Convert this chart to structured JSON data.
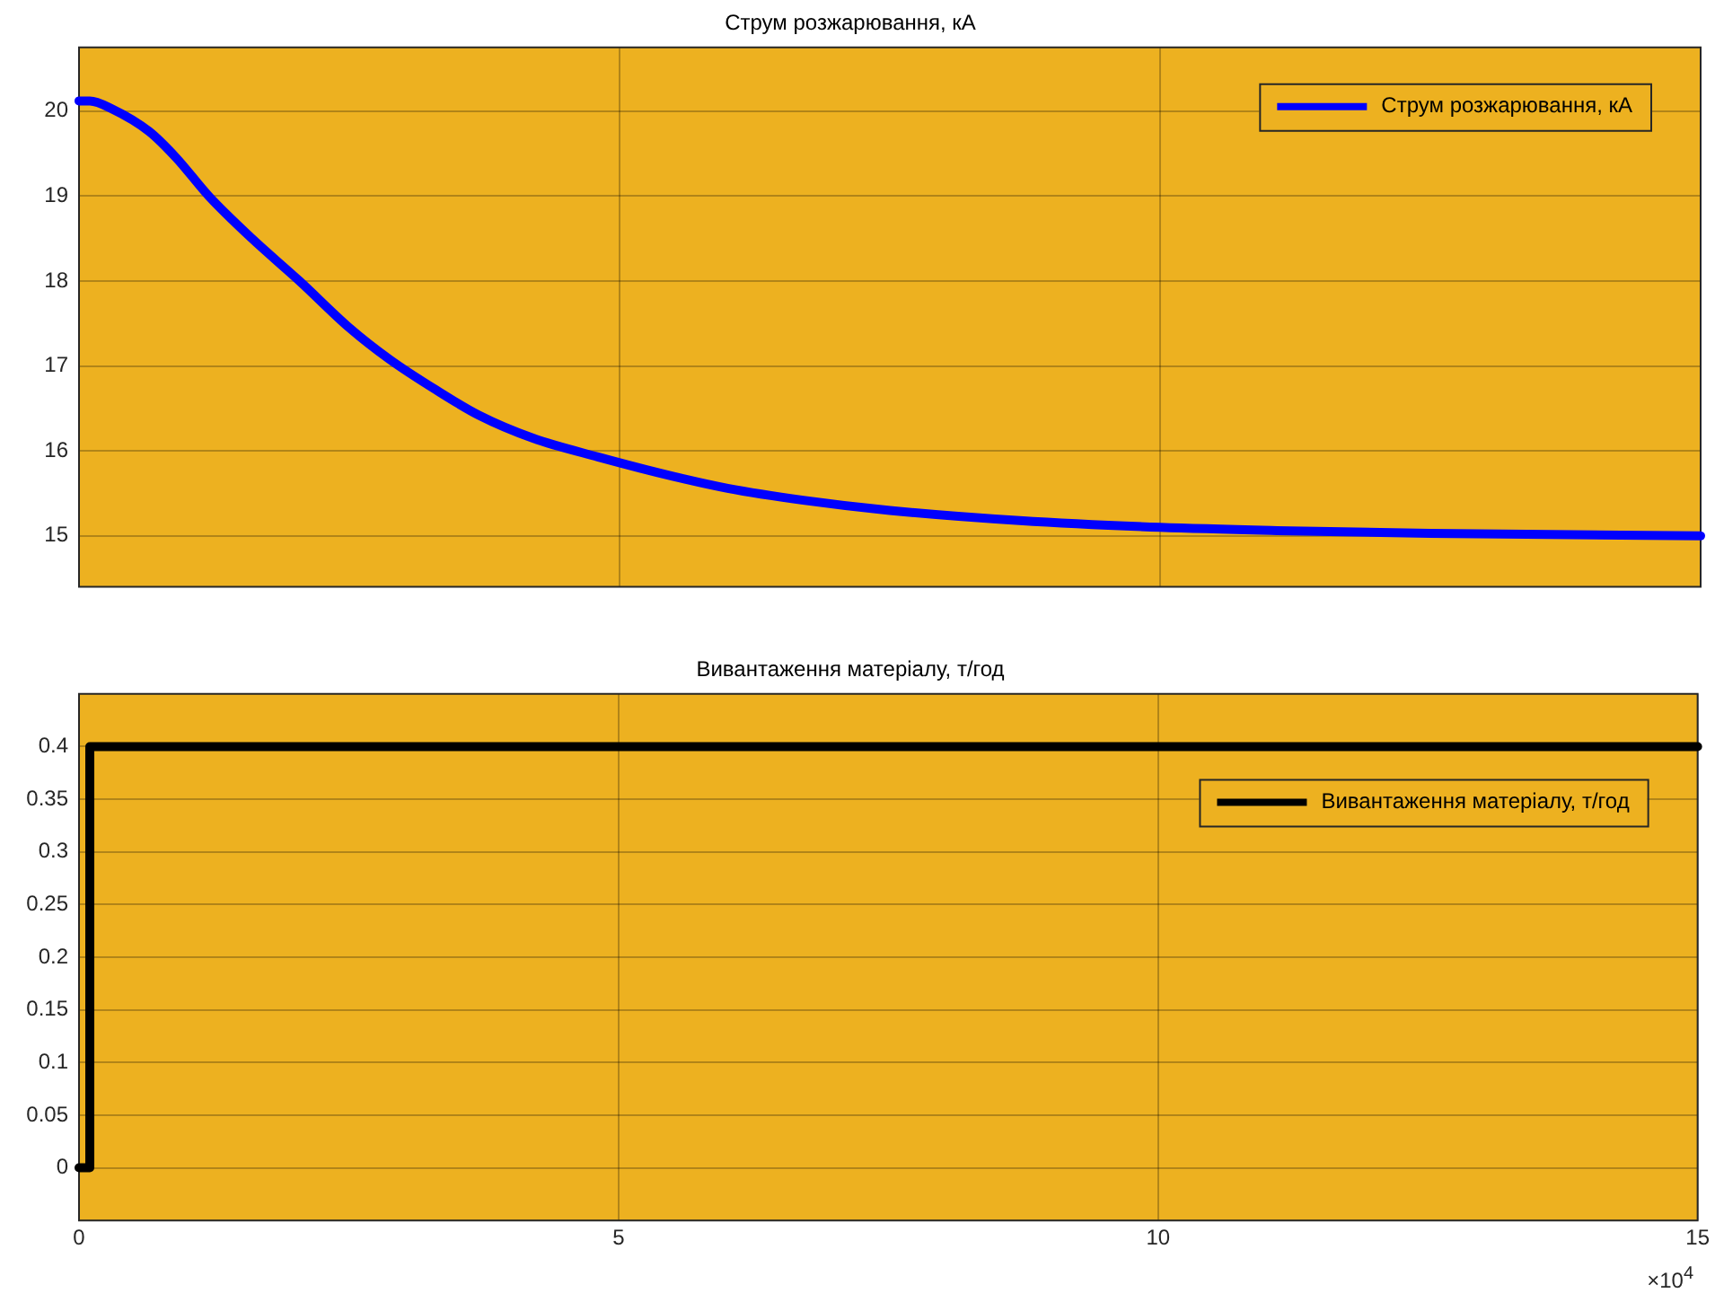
{
  "chart_data": [
    {
      "type": "line",
      "title": "Струм розжарювання, кА",
      "x": [
        0,
        0.1,
        0.3,
        0.65,
        0.9,
        1.2,
        1.6,
        2.04,
        2.5,
        2.87,
        3.3,
        3.7,
        4.2,
        4.8,
        5.5,
        6.0,
        6.7,
        7.5,
        8.7,
        10.0,
        11.2,
        12.5,
        15.0
      ],
      "series": [
        {
          "name": "Струм розжарювання, кА",
          "color": "#0000ff",
          "values": [
            20.12,
            20.12,
            20.03,
            19.76,
            19.45,
            19.0,
            18.5,
            18.0,
            17.45,
            17.08,
            16.72,
            16.42,
            16.15,
            15.93,
            15.7,
            15.56,
            15.42,
            15.3,
            15.18,
            15.1,
            15.06,
            15.03,
            15.0
          ]
        }
      ],
      "xlim": [
        0,
        15
      ],
      "xticks": [
        0,
        5,
        10,
        15
      ],
      "ylim": [
        14.4,
        20.75
      ],
      "yticks": [
        15,
        16,
        17,
        18,
        19,
        20
      ],
      "grid": true,
      "legend": "top right",
      "tick_labels": "y"
    },
    {
      "type": "line",
      "title": "Вивантаження матеріалу, т/год",
      "x": [
        0,
        0.1,
        0.1,
        15
      ],
      "series": [
        {
          "name": "Вивантаження матеріалу, т/год",
          "color": "#000000",
          "values": [
            0,
            0,
            0.4,
            0.4
          ]
        }
      ],
      "xlim": [
        0,
        15
      ],
      "xticks": [
        0,
        5,
        10,
        15
      ],
      "ylim": [
        -0.05,
        0.45
      ],
      "yticks": [
        0,
        0.05,
        0.1,
        0.15,
        0.2,
        0.25,
        0.3,
        0.35,
        0.4
      ],
      "grid": true,
      "legend": "top right",
      "annotations": [
        "×10$^{4}$"
      ]
    }
  ]
}
